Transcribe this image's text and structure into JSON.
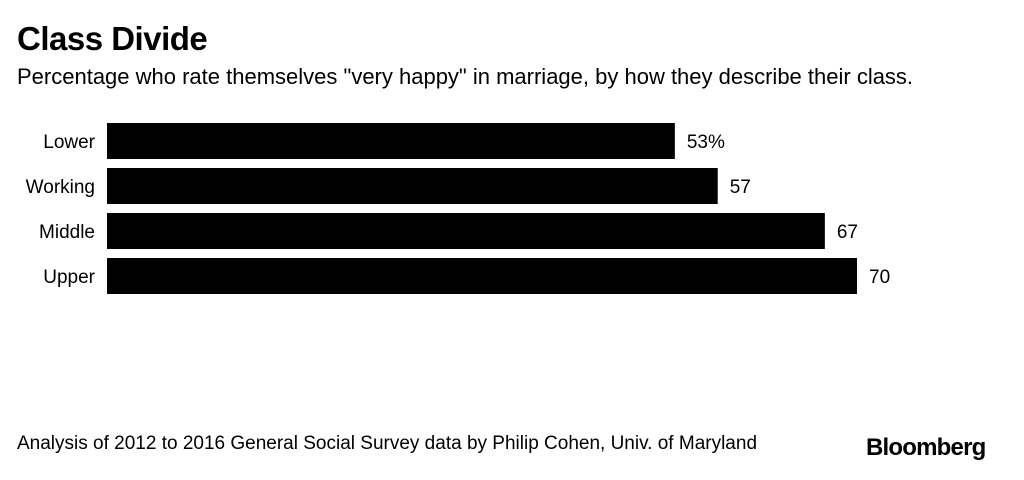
{
  "title": "Class Divide",
  "subtitle": "Percentage who rate themselves \"very happy\" in marriage, by how they describe their class.",
  "source": "Analysis of 2012 to 2016 General Social Survey data by Philip Cohen, Univ. of Maryland",
  "brand": "Bloomberg",
  "chart_data": {
    "type": "bar",
    "orientation": "horizontal",
    "categories": [
      "Lower",
      "Working",
      "Middle",
      "Upper"
    ],
    "values": [
      53,
      57,
      67,
      70
    ],
    "value_labels": [
      "53%",
      "57",
      "67",
      "70"
    ],
    "xlim": [
      0,
      70
    ],
    "grid": false,
    "bar_color": "#000000"
  }
}
